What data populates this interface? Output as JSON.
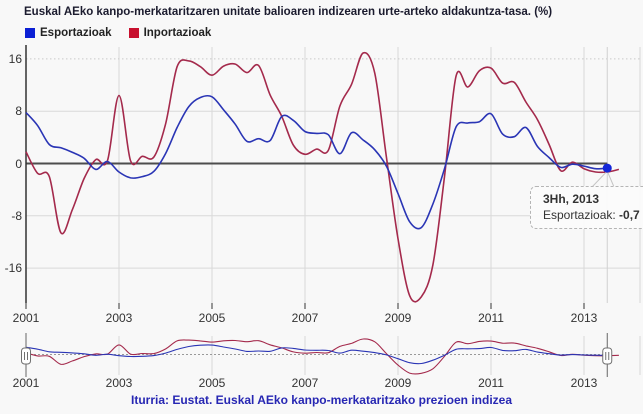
{
  "title": "Euskal AEko kanpo-merkataritzaren unitate balioaren indizearen urte-arteko aldakuntza-tasa. (%)",
  "legend": [
    {
      "label": "Esportazioak",
      "color": "#0b1fd4"
    },
    {
      "label": "Inportazioak",
      "color": "#c8102e"
    }
  ],
  "colors": {
    "export_line": "#2a35b5",
    "import_line": "#a42a4c",
    "export_swatch": "#0b1fd4",
    "import_swatch": "#c8102e",
    "last_point_dot": "#1326d8",
    "grid": "#d9d9d9",
    "grid_dotted": "#c9c9c9",
    "zero_line": "#4d4d4d",
    "axis": "#333333",
    "crosshair": "#d0d0d0",
    "source_text": "#2727b3",
    "background": "#f8f8f8"
  },
  "y_axis": {
    "ticks": [
      16,
      8,
      0,
      -8,
      -16
    ]
  },
  "x_axis": {
    "ticks": [
      "2001",
      "2003",
      "2005",
      "2007",
      "2009",
      "2011",
      "2013"
    ]
  },
  "minimap": {
    "ticks": [
      "2001",
      "2003",
      "2005",
      "2007",
      "2009",
      "2011",
      "2013"
    ]
  },
  "tooltip": {
    "period": "3Hh, 2013",
    "series": "Esportazioak:",
    "value": "-0,7"
  },
  "source": "Iturria: Eustat. Euskal AEko kanpo-merkataritzako prezioen indizea",
  "chart_data": {
    "type": "line",
    "title": "Euskal AEko kanpo-merkataritzaren unitate balioaren indizearen urte-arteko aldakuntza-tasa. (%)",
    "xlabel": "",
    "ylabel": "",
    "ylim": [
      -22,
      18
    ],
    "y_gridlines": [
      16,
      8,
      0,
      -8,
      -16
    ],
    "x_tick_years": [
      2001,
      2003,
      2005,
      2007,
      2009,
      2011,
      2013
    ],
    "grid": true,
    "legend_position": "top-left",
    "frequency": "quarterly (Hh = hiruhilekoa)",
    "categories": [
      "1Hh, 2001",
      "2Hh, 2001",
      "3Hh, 2001",
      "4Hh, 2001",
      "1Hh, 2002",
      "2Hh, 2002",
      "3Hh, 2002",
      "4Hh, 2002",
      "1Hh, 2003",
      "2Hh, 2003",
      "3Hh, 2003",
      "4Hh, 2003",
      "1Hh, 2004",
      "2Hh, 2004",
      "3Hh, 2004",
      "4Hh, 2004",
      "1Hh, 2005",
      "2Hh, 2005",
      "3Hh, 2005",
      "4Hh, 2005",
      "1Hh, 2006",
      "2Hh, 2006",
      "3Hh, 2006",
      "4Hh, 2006",
      "1Hh, 2007",
      "2Hh, 2007",
      "3Hh, 2007",
      "4Hh, 2007",
      "1Hh, 2008",
      "2Hh, 2008",
      "3Hh, 2008",
      "4Hh, 2008",
      "1Hh, 2009",
      "2Hh, 2009",
      "3Hh, 2009",
      "4Hh, 2009",
      "1Hh, 2010",
      "2Hh, 2010",
      "3Hh, 2010",
      "4Hh, 2010",
      "1Hh, 2011",
      "2Hh, 2011",
      "3Hh, 2011",
      "4Hh, 2011",
      "1Hh, 2012",
      "2Hh, 2012",
      "3Hh, 2012",
      "4Hh, 2012",
      "1Hh, 2013",
      "2Hh, 2013",
      "3Hh, 2013"
    ],
    "series": [
      {
        "name": "Esportazioak",
        "color": "#2a35b5",
        "values": [
          7.8,
          5.8,
          2.9,
          2.4,
          1.7,
          0.8,
          -0.9,
          0.3,
          -1.3,
          -2.2,
          -2.0,
          -1.2,
          1.5,
          5.5,
          8.7,
          10.1,
          10.2,
          8.2,
          6.0,
          3.4,
          3.8,
          3.5,
          7.2,
          6.6,
          4.9,
          4.6,
          4.4,
          1.5,
          4.7,
          3.6,
          2.1,
          -0.4,
          -4.6,
          -8.9,
          -9.8,
          -6.2,
          -0.8,
          5.6,
          6.2,
          6.4,
          7.6,
          4.5,
          4.1,
          5.5,
          2.6,
          0.9,
          -0.6,
          -0.1,
          -0.4,
          -0.8,
          -0.7
        ]
      },
      {
        "name": "Inportazioak",
        "color": "#a42a4c",
        "values": [
          1.8,
          -1.5,
          -2.0,
          -10.6,
          -7.0,
          -2.3,
          0.6,
          0.4,
          10.4,
          0.4,
          1.1,
          1.0,
          6.0,
          14.8,
          15.7,
          14.8,
          13.5,
          14.9,
          15.2,
          13.9,
          15.0,
          10.5,
          7.2,
          2.8,
          1.4,
          2.2,
          2.0,
          8.8,
          12.1,
          16.9,
          13.8,
          1.0,
          -11.5,
          -20.2,
          -20.4,
          -15.5,
          -2.0,
          13.4,
          11.7,
          14.2,
          14.6,
          12.3,
          12.4,
          9.4,
          6.7,
          2.9,
          -1.1,
          0.2,
          -0.8,
          -1.3,
          -1.3
        ],
        "extra_tail_value": -0.9
      }
    ],
    "highlighted_point": {
      "series": "Esportazioak",
      "category": "3Hh, 2013",
      "value": -0.7
    }
  }
}
